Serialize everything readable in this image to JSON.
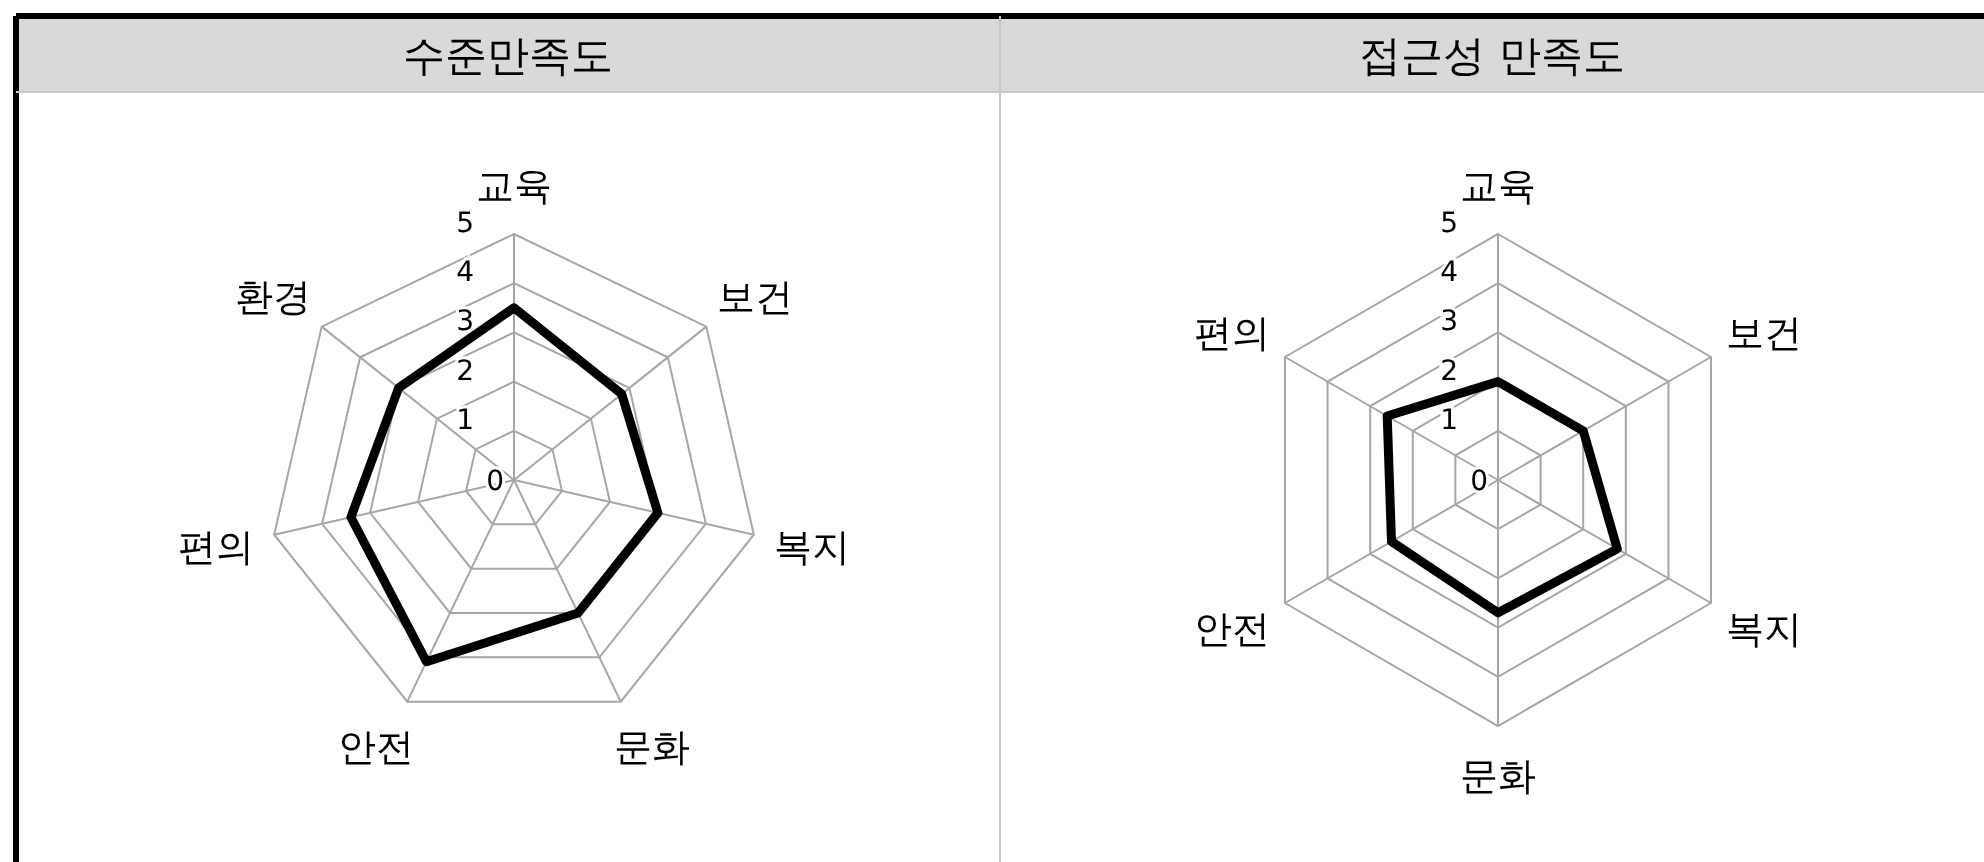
{
  "chart_data": [
    {
      "type": "radar",
      "title": "수준만족도",
      "categories": [
        "교육",
        "보건",
        "복지",
        "문화",
        "안전",
        "편의",
        "환경"
      ],
      "series": [
        {
          "color": "#000000",
          "values": [
            3.5,
            2.8,
            3.0,
            3.0,
            4.1,
            3.4,
            3.0
          ]
        }
      ],
      "ylim": [
        0,
        5
      ],
      "yticks": [
        0,
        1,
        2,
        3,
        4,
        5
      ],
      "grid": true
    },
    {
      "type": "radar",
      "title": "접근성 만족도",
      "categories": [
        "교육",
        "보건",
        "복지",
        "문화",
        "안전",
        "편의"
      ],
      "series": [
        {
          "color": "#000000",
          "values": [
            2.0,
            2.0,
            2.8,
            2.7,
            2.5,
            2.6
          ]
        }
      ],
      "ylim": [
        0,
        5
      ],
      "yticks": [
        0,
        1,
        2,
        3,
        4,
        5
      ],
      "grid": true
    }
  ]
}
